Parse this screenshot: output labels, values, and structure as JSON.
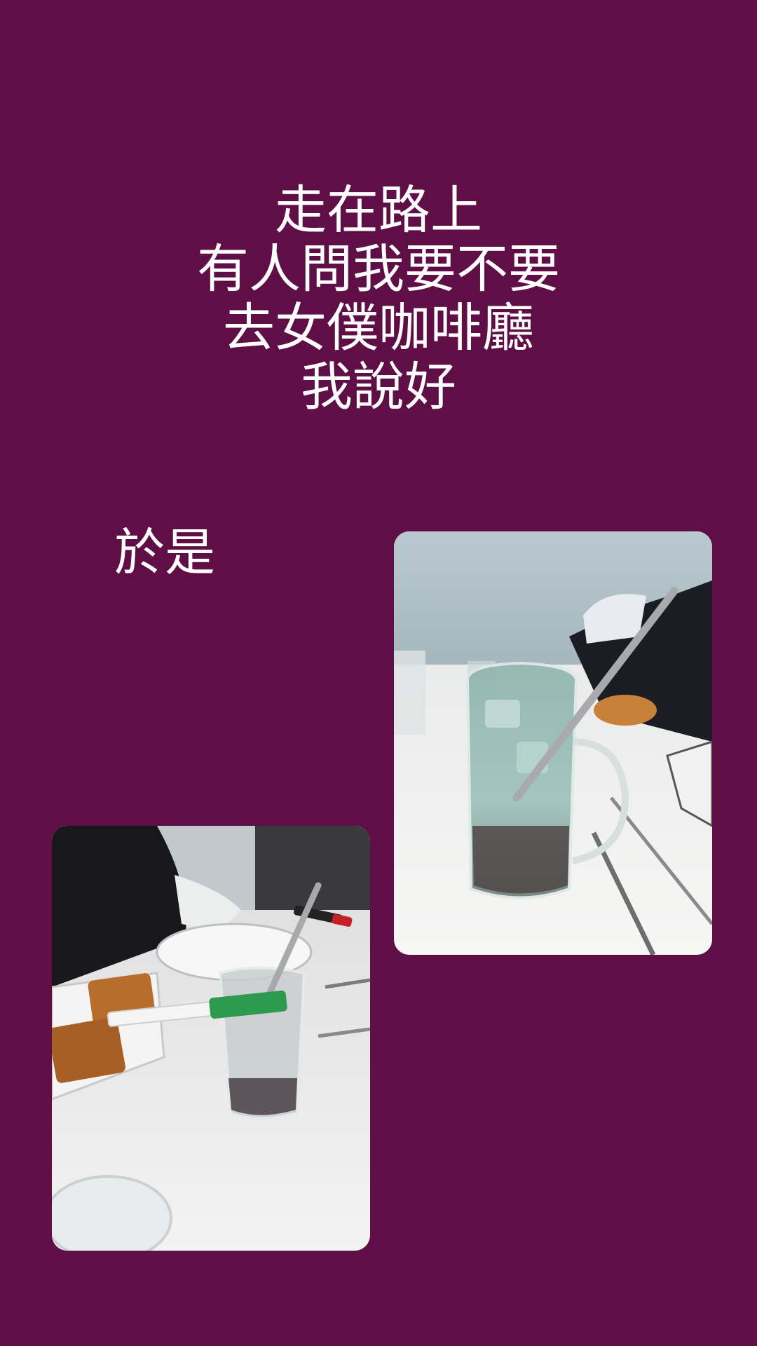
{
  "story": {
    "background_color": "#5f0f46",
    "caption_lines": [
      "走在路上",
      "有人問我要不要",
      "去女僕咖啡廳",
      "我說好"
    ],
    "side_caption": "於是"
  },
  "photos": [
    {
      "id": "photo-right",
      "content": "photo-cold-drink-glass-with-straw"
    },
    {
      "id": "photo-left",
      "content": "photo-drink-with-syringe-and-waffles"
    }
  ]
}
